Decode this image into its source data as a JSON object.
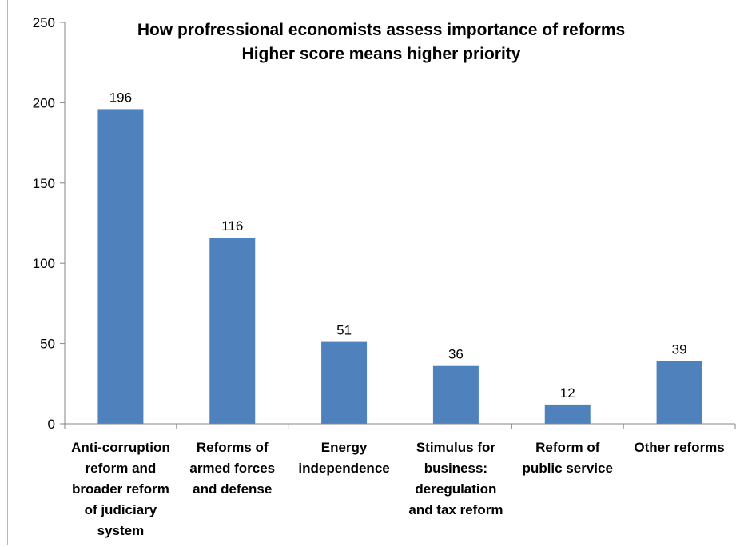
{
  "chart_data": {
    "type": "bar",
    "title_lines": [
      "How profressional economists assess  importance of reforms",
      "Higher score means higher priority"
    ],
    "categories": [
      [
        "Anti-corruption",
        "reform and",
        "broader reform",
        "of judiciary",
        "system"
      ],
      [
        "Reforms of",
        "armed forces",
        "and defense"
      ],
      [
        "Energy",
        "independence"
      ],
      [
        "Stimulus for",
        "business:",
        "deregulation",
        "and tax reform"
      ],
      [
        "Reform of",
        "public service"
      ],
      [
        "Other reforms"
      ]
    ],
    "values": [
      196,
      116,
      51,
      36,
      12,
      39
    ],
    "data_labels": [
      "196",
      "116",
      "51",
      "36",
      "12",
      "39"
    ],
    "ylim": [
      0,
      250
    ],
    "yticks": [
      "0",
      "50",
      "100",
      "150",
      "200",
      "250"
    ],
    "grid": false,
    "legend": "none",
    "colors": {
      "bar": "#4f81bd",
      "axis": "#868686"
    }
  }
}
